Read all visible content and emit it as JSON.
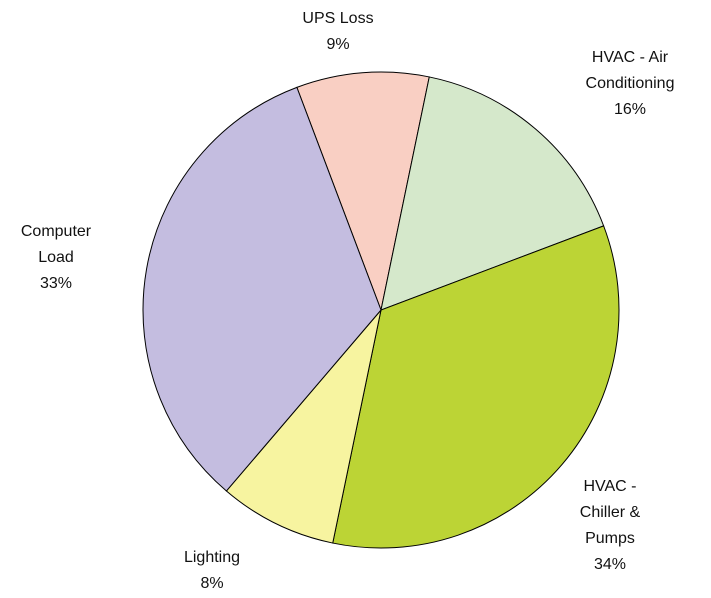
{
  "chart_data": {
    "type": "pie",
    "categories": [
      "UPS Loss",
      "HVAC - Air Conditioning",
      "HVAC - Chiller & Pumps",
      "Lighting",
      "Computer Load"
    ],
    "values": [
      9,
      16,
      34,
      8,
      33
    ],
    "value_labels": [
      "9%",
      "16%",
      "34%",
      "8%",
      "33%"
    ],
    "colors": [
      "#f9cfc3",
      "#d5e8cb",
      "#bcd435",
      "#f7f4a0",
      "#c4bde0"
    ]
  }
}
